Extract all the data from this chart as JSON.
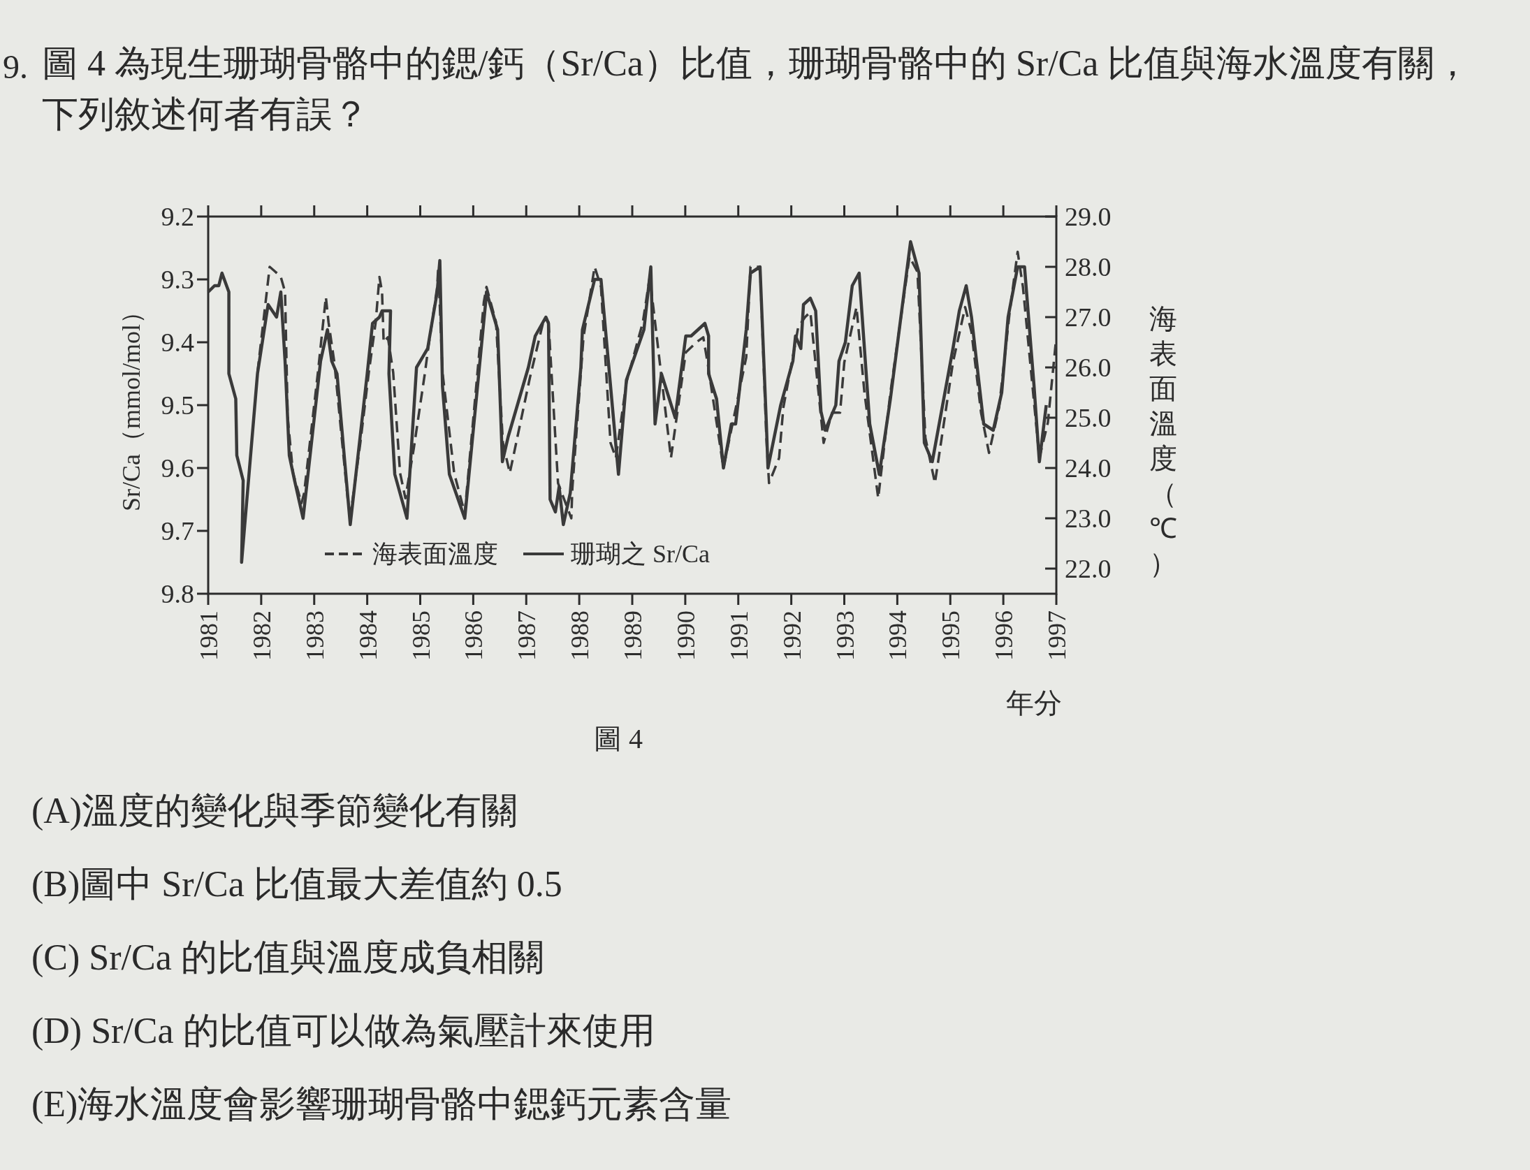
{
  "chart_data": {
    "type": "line",
    "title": "圖 4 為現生珊瑚骨骼中的鍶/鈣（Sr/Ca）比值，珊瑚骨骼中的 Sr/Ca 比值與海水溫度有關，下列敘述何者有誤？",
    "xlabel": "年分",
    "ylabel": "Sr/Ca（mmol/mol）",
    "y2label": "海表面溫度（℃）",
    "annotations": [
      "9.",
      "圖 4",
      "(A)溫度的變化與季節變化有關",
      "(B)圖中 Sr/Ca 比值最大差值約 0.5",
      "(C) Sr/Ca 的比值與溫度成負相關",
      "(D) Sr/Ca 的比值可以做為氣壓計來使用",
      "(E)海水溫度會影響珊瑚骨骼中鍶鈣元素含量"
    ],
    "xlim": [
      1981,
      1997
    ],
    "xticks": [
      1981,
      1982,
      1983,
      1984,
      1985,
      1986,
      1987,
      1988,
      1989,
      1990,
      1991,
      1992,
      1993,
      1994,
      1995,
      1996,
      1997
    ],
    "ylim": [
      9.8,
      9.2
    ],
    "yticks": [
      9.2,
      9.3,
      9.4,
      9.5,
      9.6,
      9.7,
      9.8
    ],
    "y2lim": [
      21.5,
      29.0
    ],
    "y2ticks": [
      {
        "value": 22,
        "label": "22.0"
      },
      {
        "value": 23,
        "label": "23.0"
      },
      {
        "value": 24,
        "label": "24.0"
      },
      {
        "value": 25,
        "label": "25.0"
      },
      {
        "value": 26,
        "label": "26.0"
      },
      {
        "value": 27,
        "label": "27.0"
      },
      {
        "value": 28,
        "label": "28.0"
      },
      {
        "value": 29,
        "label": "29.0"
      }
    ],
    "legend": "bottom",
    "series": [
      {
        "name": "海表面溫度",
        "color": "#3a3a3a",
        "line_style": "dashed",
        "axis": "y2",
        "x": [
          1981.93,
          1982.16,
          1982.27,
          1982.37,
          1982.45,
          1982.5,
          1982.6,
          1982.76,
          1982.81,
          1983.07,
          1983.22,
          1983.27,
          1983.38,
          1983.64,
          1983.69,
          1983.87,
          1984.03,
          1984.16,
          1984.23,
          1984.28,
          1984.31,
          1984.39,
          1984.49,
          1984.62,
          1984.72,
          1984.88,
          1985.09,
          1985.14,
          1985.32,
          1985.34,
          1985.42,
          1985.64,
          1985.84,
          1986.2,
          1986.25,
          1986.43,
          1986.56,
          1986.69,
          1986.91,
          1987.07,
          1987.32,
          1987.42,
          1987.6,
          1987.85,
          1987.87,
          1988.08,
          1988.29,
          1988.41,
          1988.59,
          1988.69,
          1988.89,
          1989.2,
          1989.33,
          1989.73,
          1990.01,
          1990.21,
          1990.34,
          1990.42,
          1990.72,
          1991.15,
          1991.23,
          1991.28,
          1991.41,
          1991.53,
          1991.58,
          1991.77,
          1991.85,
          1992.08,
          1992.13,
          1992.26,
          1992.36,
          1992.61,
          1992.77,
          1992.92,
          1993.0,
          1993.23,
          1993.38,
          1993.64,
          1993.87,
          1994.23,
          1994.38,
          1994.53,
          1994.71,
          1995.05,
          1995.28,
          1995.4,
          1995.58,
          1995.73,
          1995.92,
          1996.12,
          1996.27,
          1996.37,
          1996.58,
          1996.68,
          1996.84,
          1996.99
        ],
        "values": [
          25.9,
          28.0,
          27.9,
          27.8,
          27.5,
          25.0,
          23.9,
          23.3,
          23.5,
          25.9,
          27.4,
          26.9,
          26.1,
          23.3,
          23.1,
          24.5,
          25.9,
          26.9,
          27.8,
          27.5,
          26.5,
          26.6,
          25.9,
          23.9,
          23.4,
          24.4,
          25.9,
          26.3,
          27.6,
          28.0,
          25.9,
          23.9,
          23.1,
          27.3,
          27.6,
          26.9,
          24.5,
          23.9,
          25.0,
          25.8,
          26.9,
          26.9,
          23.7,
          23.0,
          23.6,
          26.6,
          28.0,
          27.6,
          24.5,
          24.2,
          25.7,
          26.9,
          27.8,
          24.2,
          26.3,
          26.5,
          26.6,
          26.1,
          24.0,
          26.2,
          28.0,
          28.0,
          28.0,
          24.6,
          23.7,
          24.2,
          25.2,
          26.5,
          26.8,
          27.0,
          27.1,
          24.5,
          25.1,
          25.1,
          26.1,
          27.2,
          25.5,
          23.4,
          25.5,
          28.2,
          27.9,
          24.6,
          23.7,
          26.1,
          27.2,
          26.7,
          25.1,
          24.3,
          25.2,
          27.1,
          28.3,
          27.6,
          25.3,
          24.2,
          24.9,
          26.5
        ]
      },
      {
        "name": "珊瑚之 Sr/Ca",
        "color": "#3a3a3a",
        "line_style": "solid",
        "x": [
          1981.0,
          1981.12,
          1981.2,
          1981.26,
          1981.39,
          1981.39,
          1981.52,
          1981.54,
          1981.66,
          1981.63,
          1981.93,
          1982.13,
          1982.29,
          1982.37,
          1982.45,
          1982.53,
          1982.63,
          1982.79,
          1983.12,
          1983.25,
          1983.33,
          1983.43,
          1983.68,
          1984.0,
          1984.1,
          1984.23,
          1984.28,
          1984.44,
          1984.41,
          1984.52,
          1984.75,
          1984.93,
          1985.14,
          1985.32,
          1985.37,
          1985.42,
          1985.55,
          1985.84,
          1986.23,
          1986.25,
          1986.46,
          1986.55,
          1986.66,
          1987.04,
          1987.17,
          1987.37,
          1987.42,
          1987.45,
          1987.55,
          1987.62,
          1987.7,
          1987.83,
          1988.03,
          1988.06,
          1988.29,
          1988.41,
          1988.74,
          1988.89,
          1989.22,
          1989.35,
          1989.43,
          1989.55,
          1989.81,
          1990.01,
          1990.11,
          1990.24,
          1990.37,
          1990.44,
          1990.44,
          1990.59,
          1990.72,
          1990.87,
          1990.95,
          1991.15,
          1991.23,
          1991.41,
          1991.53,
          1991.56,
          1991.8,
          1992.03,
          1992.08,
          1992.18,
          1992.23,
          1992.36,
          1992.46,
          1992.56,
          1992.64,
          1992.84,
          1992.9,
          1993.02,
          1993.15,
          1993.28,
          1993.48,
          1993.66,
          1993.87,
          1994.25,
          1994.41,
          1994.51,
          1994.66,
          1995.05,
          1995.17,
          1995.3,
          1995.4,
          1995.63,
          1995.81,
          1995.97,
          1996.09,
          1996.27,
          1996.4,
          1996.58,
          1996.68,
          1996.81
        ],
        "values": [
          9.32,
          9.31,
          9.31,
          9.29,
          9.32,
          9.45,
          9.49,
          9.58,
          9.62,
          9.75,
          9.45,
          9.34,
          9.36,
          9.32,
          9.43,
          9.58,
          9.62,
          9.68,
          9.43,
          9.38,
          9.43,
          9.45,
          9.69,
          9.45,
          9.37,
          9.36,
          9.35,
          9.35,
          9.45,
          9.61,
          9.68,
          9.44,
          9.41,
          9.32,
          9.27,
          9.47,
          9.61,
          9.68,
          9.34,
          9.32,
          9.38,
          9.59,
          9.55,
          9.44,
          9.39,
          9.36,
          9.37,
          9.65,
          9.67,
          9.63,
          9.69,
          9.64,
          9.44,
          9.38,
          9.3,
          9.3,
          9.61,
          9.46,
          9.38,
          9.28,
          9.53,
          9.45,
          9.52,
          9.39,
          9.39,
          9.38,
          9.37,
          9.39,
          9.45,
          9.49,
          9.6,
          9.53,
          9.53,
          9.38,
          9.29,
          9.28,
          9.53,
          9.6,
          9.5,
          9.43,
          9.39,
          9.41,
          9.34,
          9.33,
          9.35,
          9.51,
          9.54,
          9.5,
          9.43,
          9.4,
          9.31,
          9.29,
          9.53,
          9.61,
          9.49,
          9.24,
          9.29,
          9.56,
          9.59,
          9.41,
          9.35,
          9.31,
          9.36,
          9.53,
          9.54,
          9.48,
          9.36,
          9.28,
          9.28,
          9.47,
          9.59,
          9.5
        ]
      }
    ]
  }
}
